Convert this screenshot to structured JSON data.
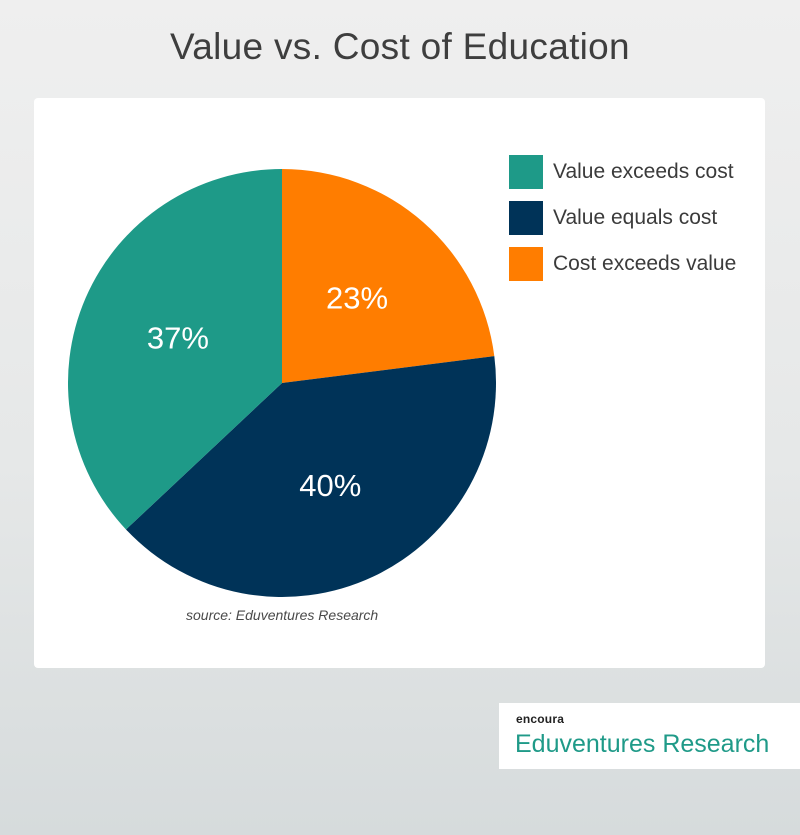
{
  "title": "Value vs. Cost of Education",
  "source": "source: Eduventures Research",
  "brand": {
    "small": "encoura",
    "big": "Eduventures Research"
  },
  "chart_data": {
    "type": "pie",
    "title": "Value vs. Cost of Education",
    "slices": [
      {
        "label": "Cost exceeds value",
        "value": 23,
        "display": "23%",
        "color": "#ff7d00"
      },
      {
        "label": "Value equals cost",
        "value": 40,
        "display": "40%",
        "color": "#003358"
      },
      {
        "label": "Value exceeds cost",
        "value": 37,
        "display": "37%",
        "color": "#1e9a88"
      }
    ],
    "legend": [
      {
        "label": "Value exceeds cost",
        "color": "#1e9a88"
      },
      {
        "label": "Value equals cost",
        "color": "#003358"
      },
      {
        "label": "Cost exceeds value",
        "color": "#ff7d00"
      }
    ],
    "legend_position": "right"
  }
}
